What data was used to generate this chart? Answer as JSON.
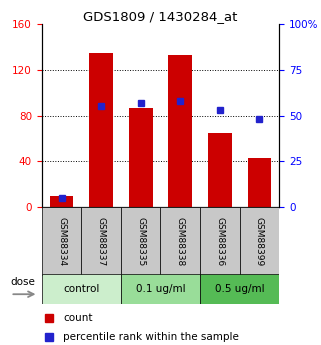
{
  "title": "GDS1809 / 1430284_at",
  "samples": [
    "GSM88334",
    "GSM88337",
    "GSM88335",
    "GSM88338",
    "GSM88336",
    "GSM88399"
  ],
  "bar_values": [
    10,
    135,
    87,
    133,
    65,
    43
  ],
  "blue_values": [
    5,
    55,
    57,
    58,
    53,
    48
  ],
  "left_ylim": [
    0,
    160
  ],
  "right_ylim": [
    0,
    100
  ],
  "left_yticks": [
    0,
    40,
    80,
    120,
    160
  ],
  "right_yticks": [
    0,
    25,
    50,
    75,
    100
  ],
  "bar_color": "#cc0000",
  "blue_color": "#2222cc",
  "plot_bg": "#ffffff",
  "sample_bg": "#c8c8c8",
  "group_spans": [
    [
      0,
      1,
      "control",
      "#cceecc"
    ],
    [
      2,
      3,
      "0.1 ug/ml",
      "#99dd99"
    ],
    [
      4,
      5,
      "0.5 ug/ml",
      "#55bb55"
    ]
  ],
  "dose_label": "dose",
  "legend_count": "count",
  "legend_pct": "percentile rank within the sample",
  "grid_vals": [
    40,
    80,
    120
  ]
}
